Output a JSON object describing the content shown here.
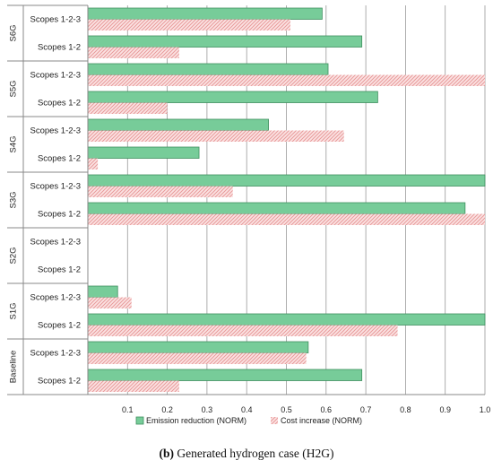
{
  "chart_data": {
    "type": "bar",
    "orientation": "horizontal",
    "groups": [
      {
        "label": "S6G",
        "categories": [
          "Scopes 1-2-3",
          "Scopes 1-2"
        ]
      },
      {
        "label": "S5G",
        "categories": [
          "Scopes 1-2-3",
          "Scopes 1-2"
        ]
      },
      {
        "label": "S4G",
        "categories": [
          "Scopes 1-2-3",
          "Scopes 1-2"
        ]
      },
      {
        "label": "S3G",
        "categories": [
          "Scopes 1-2-3",
          "Scopes 1-2"
        ]
      },
      {
        "label": "S2G",
        "categories": [
          "Scopes 1-2-3",
          "Scopes 1-2"
        ]
      },
      {
        "label": "S1G",
        "categories": [
          "Scopes 1-2-3",
          "Scopes 1-2"
        ]
      },
      {
        "label": "Baseline",
        "categories": [
          "Scopes 1-2-3",
          "Scopes 1-2"
        ]
      }
    ],
    "series": [
      {
        "name": "Emission reduction (NORM)",
        "color": "#77cc99",
        "values": [
          0.59,
          0.69,
          0.605,
          0.73,
          0.455,
          0.28,
          1.0,
          0.95,
          0,
          0,
          0.075,
          1.0,
          0.555,
          0.69
        ]
      },
      {
        "name": "Cost increase (NORM)",
        "color": "#f2b8b8",
        "values": [
          0.51,
          0.23,
          1.0,
          0.2,
          0.645,
          0.025,
          0.365,
          1.0,
          0,
          0,
          0.11,
          0.78,
          0.55,
          0.23
        ]
      }
    ],
    "xlim": [
      0,
      1.0
    ],
    "xticks": [
      "0.1",
      "0.2",
      "0.3",
      "0.4",
      "0.5",
      "0.6",
      "0.7",
      "0.8",
      "0.9",
      "1.0"
    ],
    "grid": true,
    "legend_position": "bottom"
  },
  "caption": {
    "label": "(b)",
    "text": " Generated hydrogen case (H2G)"
  }
}
